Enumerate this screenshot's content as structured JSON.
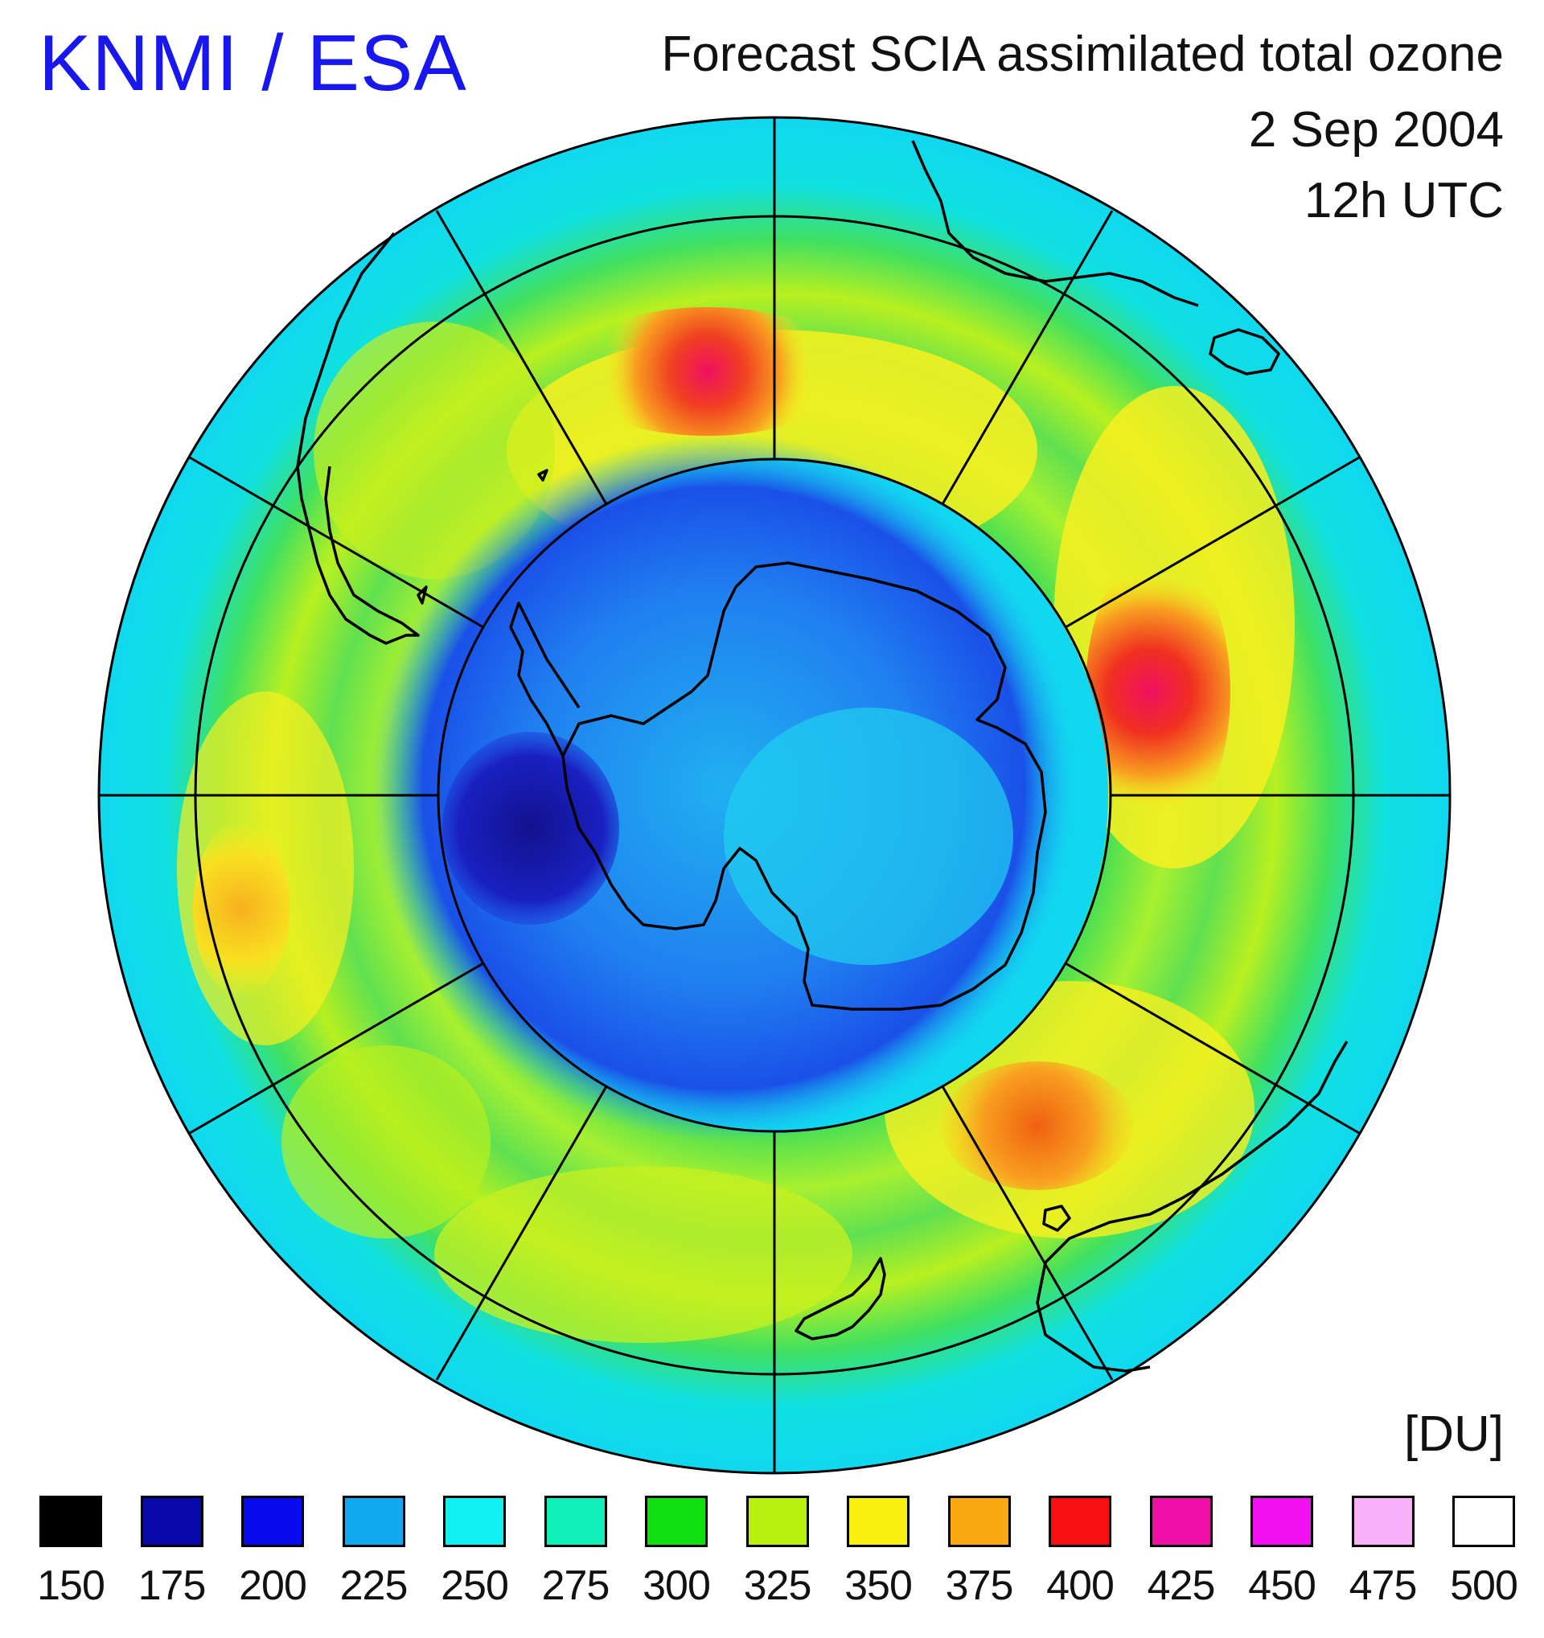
{
  "header": {
    "agency": "KNMI / ESA",
    "title": "Forecast SCIA assimilated total ozone",
    "date": "2 Sep 2004",
    "time": "12h UTC"
  },
  "map": {
    "projection": "south-polar-stereographic",
    "colors": {
      "background_ring": "#10e0f0",
      "ozone_hole_deep": "#1a1ab4",
      "ozone_hole": "#2060f0",
      "inner_blue": "#20a8f0",
      "green": "#40e040",
      "yellow_green": "#b8f020",
      "yellow": "#f8f020",
      "orange": "#f8a020",
      "red": "#f02040"
    }
  },
  "legend": {
    "unit": "[DU]",
    "items": [
      {
        "value": "150",
        "color": "#000000"
      },
      {
        "value": "175",
        "color": "#0a0aaa"
      },
      {
        "value": "200",
        "color": "#0a0aee"
      },
      {
        "value": "225",
        "color": "#10a8f0"
      },
      {
        "value": "250",
        "color": "#10f0f0"
      },
      {
        "value": "275",
        "color": "#10f0b8"
      },
      {
        "value": "300",
        "color": "#10e010"
      },
      {
        "value": "325",
        "color": "#b8f010"
      },
      {
        "value": "350",
        "color": "#f8f010"
      },
      {
        "value": "375",
        "color": "#f8a810"
      },
      {
        "value": "400",
        "color": "#f81010"
      },
      {
        "value": "425",
        "color": "#f010a8"
      },
      {
        "value": "450",
        "color": "#f010f0"
      },
      {
        "value": "475",
        "color": "#f8b0f8"
      },
      {
        "value": "500",
        "color": "#ffffff"
      }
    ]
  }
}
